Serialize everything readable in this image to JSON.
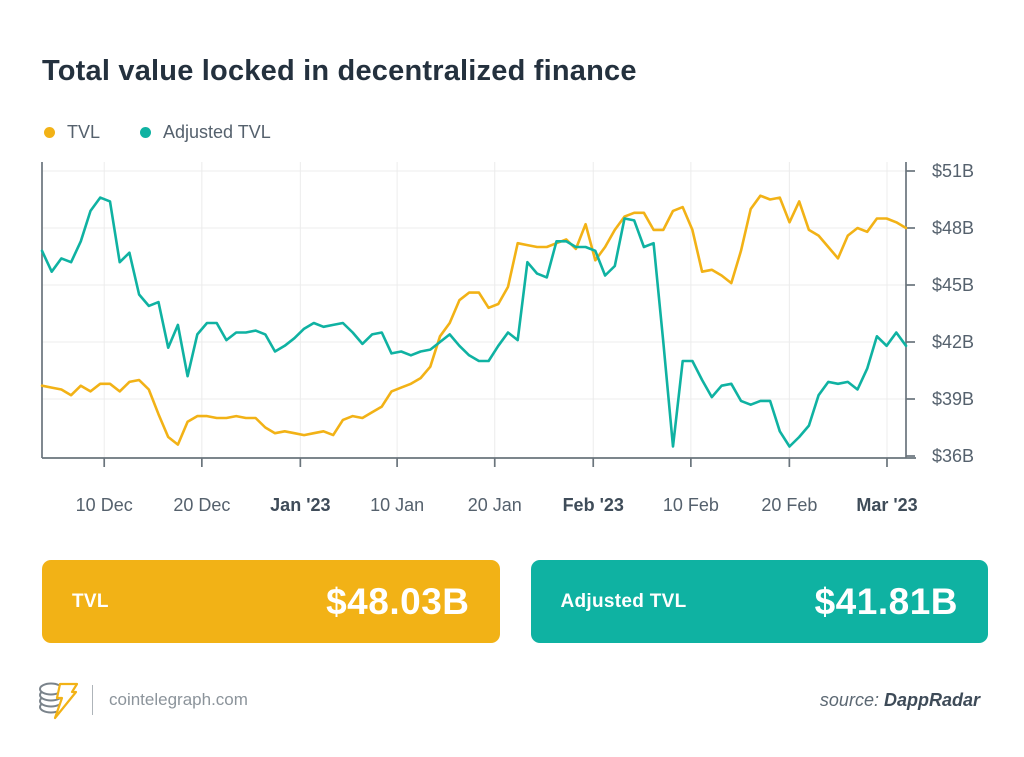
{
  "page": {
    "title": "Total value locked in decentralized finance"
  },
  "legend": [
    {
      "label": "TVL",
      "color": "#F2B216"
    },
    {
      "label": "Adjusted TVL",
      "color": "#0FB2A2"
    }
  ],
  "chart_data": {
    "type": "line",
    "title": "Total value locked in decentralized finance",
    "xlabel": "",
    "ylabel": "",
    "ylim": [
      36,
      51
    ],
    "grid": true,
    "legend_position": "top-left",
    "y_ticks": [
      {
        "label": "$51B",
        "value": 51
      },
      {
        "label": "$48B",
        "value": 48
      },
      {
        "label": "$45B",
        "value": 45
      },
      {
        "label": "$42B",
        "value": 42
      },
      {
        "label": "$39B",
        "value": 39
      },
      {
        "label": "$36B",
        "value": 36
      }
    ],
    "x_ticks": [
      {
        "label": "10 Dec",
        "pos": 0.072,
        "bold": false
      },
      {
        "label": "20 Dec",
        "pos": 0.185,
        "bold": false
      },
      {
        "label": "Jan '23",
        "pos": 0.299,
        "bold": true
      },
      {
        "label": "10 Jan",
        "pos": 0.411,
        "bold": false
      },
      {
        "label": "20 Jan",
        "pos": 0.524,
        "bold": false
      },
      {
        "label": "Feb '23",
        "pos": 0.638,
        "bold": true
      },
      {
        "label": "10 Feb",
        "pos": 0.751,
        "bold": false
      },
      {
        "label": "20 Feb",
        "pos": 0.865,
        "bold": false
      },
      {
        "label": "Mar '23",
        "pos": 0.978,
        "bold": true
      }
    ],
    "x_range": "4 Dec 2022 - 3 Mar 2023 (daily)",
    "series": [
      {
        "name": "TVL",
        "color": "#F2B216",
        "values": [
          39.7,
          39.6,
          39.5,
          39.2,
          39.7,
          39.4,
          39.8,
          39.8,
          39.4,
          39.9,
          40.0,
          39.5,
          38.2,
          37.0,
          36.6,
          37.8,
          38.1,
          38.1,
          38.0,
          38.0,
          38.1,
          38.0,
          38.0,
          37.5,
          37.2,
          37.3,
          37.2,
          37.1,
          37.2,
          37.3,
          37.1,
          37.9,
          38.1,
          38.0,
          38.3,
          38.6,
          39.4,
          39.6,
          39.8,
          40.1,
          40.7,
          42.3,
          43.0,
          44.2,
          44.6,
          44.6,
          43.8,
          44.0,
          44.9,
          47.2,
          47.1,
          47.0,
          47.0,
          47.2,
          47.4,
          46.9,
          48.2,
          46.3,
          47.0,
          47.9,
          48.6,
          48.8,
          48.8,
          47.9,
          47.9,
          48.9,
          49.1,
          47.9,
          45.7,
          45.8,
          45.5,
          45.1,
          46.8,
          49.0,
          49.7,
          49.5,
          49.6,
          48.3,
          49.4,
          47.9,
          47.6,
          47.0,
          46.4,
          47.6,
          48.0,
          47.8,
          48.5,
          48.5,
          48.3,
          48.0
        ]
      },
      {
        "name": "Adjusted TVL",
        "color": "#0FB2A2",
        "values": [
          46.8,
          45.7,
          46.4,
          46.2,
          47.3,
          48.9,
          49.6,
          49.4,
          46.2,
          46.7,
          44.5,
          43.9,
          44.1,
          41.7,
          42.9,
          40.2,
          42.4,
          43.0,
          43.0,
          42.1,
          42.5,
          42.5,
          42.6,
          42.4,
          41.5,
          41.8,
          42.2,
          42.7,
          43.0,
          42.8,
          42.9,
          43.0,
          42.5,
          41.9,
          42.4,
          42.5,
          41.4,
          41.5,
          41.3,
          41.5,
          41.6,
          42.0,
          42.4,
          41.8,
          41.3,
          41.0,
          41.0,
          41.8,
          42.5,
          42.1,
          46.2,
          45.6,
          45.4,
          47.3,
          47.3,
          47.0,
          47.0,
          46.8,
          45.5,
          46.0,
          48.5,
          48.4,
          47.0,
          47.2,
          42.0,
          36.5,
          41.0,
          41.0,
          40.0,
          39.1,
          39.7,
          39.8,
          38.9,
          38.7,
          38.9,
          38.9,
          37.3,
          36.5,
          37.0,
          37.6,
          39.2,
          39.9,
          39.8,
          39.9,
          39.5,
          40.6,
          42.3,
          41.8,
          42.5,
          41.8
        ]
      }
    ]
  },
  "cards": [
    {
      "label": "TVL",
      "value": "$48.03B",
      "color": "#F2B216"
    },
    {
      "label": "Adjusted TVL",
      "value": "$41.81B",
      "color": "#0FB2A2"
    }
  ],
  "footer": {
    "site": "cointelegraph.com",
    "source_label": "source:",
    "source_name": "DappRadar"
  }
}
